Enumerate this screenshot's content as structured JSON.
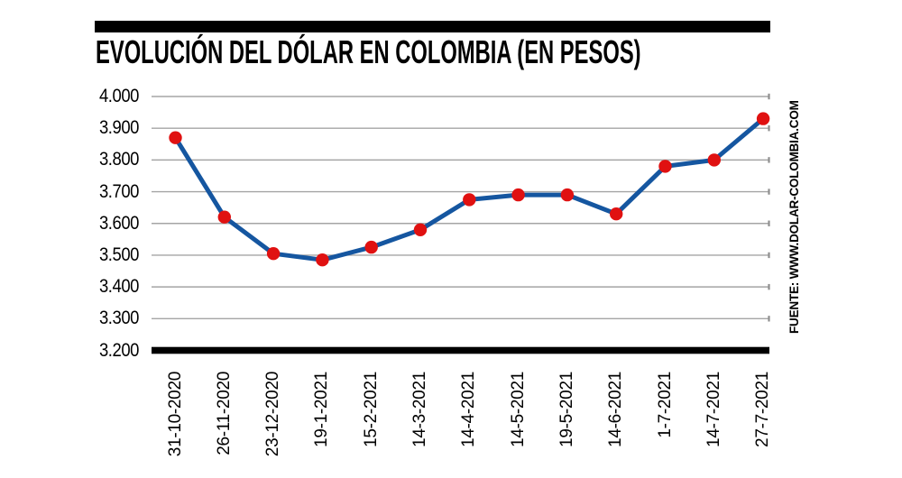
{
  "chart_data": {
    "type": "line",
    "title": "EVOLUCIÓN DEL DÓLAR EN COLOMBIA (EN PESOS)",
    "source": "FUENTE: WWW.DOLAR-COLOMBIA.COM",
    "categories": [
      "31-10-2020",
      "26-11-2020",
      "23-12-2020",
      "19-1-2021",
      "15-2-2021",
      "14-3-2021",
      "14-4-2021",
      "14-5-2021",
      "19-5-2021",
      "14-6-2021",
      "1-7-2021",
      "14-7-2021",
      "27-7-2021"
    ],
    "values": [
      3870,
      3620,
      3505,
      3485,
      3525,
      3580,
      3675,
      3690,
      3690,
      3630,
      3780,
      3800,
      3930
    ],
    "xlabel": "",
    "ylabel": "",
    "ylim": [
      3200,
      4000
    ],
    "ytick_step": 100,
    "ytick_labels": [
      "3.200",
      "3.300",
      "3.400",
      "3.500",
      "3.600",
      "3.700",
      "3.800",
      "3.900",
      "4.000"
    ],
    "grid": true,
    "legend_position": "none",
    "colors": {
      "line": "#1556A0",
      "marker": "#E01111",
      "grid": "#A5A5A5",
      "grid_tick": "#8F8F8F",
      "axis": "#000000",
      "text": "#000000",
      "background": "#FFFFFF"
    }
  }
}
